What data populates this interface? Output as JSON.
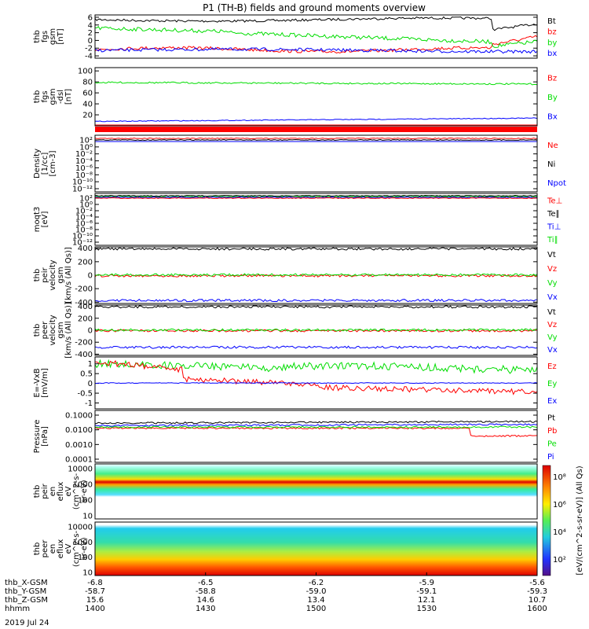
{
  "title": "P1 (TH-B) fields and ground moments overview",
  "date_label": "2019 Jul 24",
  "colors": {
    "black": "#000000",
    "red": "#ff0000",
    "green": "#00dd00",
    "blue": "#0000ff"
  },
  "chart_data": [
    {
      "id": "fgs_small",
      "type": "line",
      "ylabel": [
        "thb",
        "fgs",
        "gsm",
        "[nT]"
      ],
      "yticks": [
        -4,
        -2,
        0,
        2,
        4,
        6
      ],
      "ylim": [
        -4.6,
        6.6
      ],
      "legend": [
        {
          "name": "Bt",
          "color": "black"
        },
        {
          "name": "bz",
          "color": "red"
        },
        {
          "name": "by",
          "color": "green"
        },
        {
          "name": "bx",
          "color": "blue"
        }
      ]
    },
    {
      "id": "fgs_large",
      "type": "line",
      "ylabel": [
        "thb",
        "fgs",
        "gsm",
        "-dsl",
        "[nT]"
      ],
      "yticks": [
        20,
        40,
        60,
        80,
        100
      ],
      "ylim": [
        0,
        106
      ],
      "legend": [
        {
          "name": "Bz",
          "color": "red"
        },
        {
          "name": "By",
          "color": "green"
        },
        {
          "name": "Bx",
          "color": "blue"
        }
      ]
    },
    {
      "id": "density",
      "type": "line",
      "ylabel": [
        "Density",
        "[1/cc]",
        "[cm-3]"
      ],
      "yticks": [
        "10²",
        "10⁰",
        "10⁻²",
        "10⁻⁴",
        "10⁻⁶",
        "10⁻⁸",
        "10⁻¹⁰",
        "10⁻¹²"
      ],
      "legend": [
        {
          "name": "Ne",
          "color": "red"
        },
        {
          "name": "Ni",
          "color": "black"
        },
        {
          "name": "Npot",
          "color": "blue"
        }
      ]
    },
    {
      "id": "temp",
      "type": "line",
      "ylabel": [
        "moqt3",
        "[eV]"
      ],
      "yticks": [
        "10²",
        "10⁰",
        "10⁻²",
        "10⁻⁴",
        "10⁻⁶",
        "10⁻⁸",
        "10⁻¹⁰",
        "10⁻¹²"
      ],
      "legend": [
        {
          "name": "Te⊥",
          "color": "red"
        },
        {
          "name": "Te∥",
          "color": "black"
        },
        {
          "name": "Ti⊥",
          "color": "blue"
        },
        {
          "name": "Ti∥",
          "color": "green"
        }
      ]
    },
    {
      "id": "peir_vel",
      "type": "line",
      "ylabel": [
        "thb",
        "peir",
        "velocity",
        "gsm",
        "[km/s (All Qs)]"
      ],
      "yticks": [
        -400,
        -200,
        0,
        200,
        400
      ],
      "ylim": [
        -420,
        420
      ],
      "legend": [
        {
          "name": "Vt",
          "color": "black"
        },
        {
          "name": "Vz",
          "color": "red"
        },
        {
          "name": "Vy",
          "color": "green"
        },
        {
          "name": "Vx",
          "color": "blue"
        }
      ]
    },
    {
      "id": "peer_vel",
      "type": "line",
      "ylabel": [
        "thb",
        "peer",
        "velocity",
        "gsm",
        "[km/s (All Qs)]"
      ],
      "yticks": [
        -400,
        -200,
        0,
        200,
        400
      ],
      "ylim": [
        -420,
        420
      ],
      "legend": [
        {
          "name": "Vt",
          "color": "black"
        },
        {
          "name": "Vz",
          "color": "red"
        },
        {
          "name": "Vy",
          "color": "green"
        },
        {
          "name": "Vx",
          "color": "blue"
        }
      ]
    },
    {
      "id": "efield",
      "type": "line",
      "ylabel": [
        "E=-VxB",
        "[mV/m]"
      ],
      "yticks": [
        -1.0,
        -0.5,
        0.0,
        0.5,
        1.0
      ],
      "ylim": [
        -1.3,
        1.35
      ],
      "legend": [
        {
          "name": "Ez",
          "color": "red"
        },
        {
          "name": "Ey",
          "color": "green"
        },
        {
          "name": "Ex",
          "color": "blue"
        }
      ]
    },
    {
      "id": "pressure",
      "type": "line",
      "ylabel": [
        "Pressure",
        "[nPa]"
      ],
      "yticks": [
        "0.1000",
        "0.0100",
        "0.0010",
        "0.0001"
      ],
      "legend": [
        {
          "name": "Pt",
          "color": "black"
        },
        {
          "name": "Pb",
          "color": "red"
        },
        {
          "name": "Pe",
          "color": "green"
        },
        {
          "name": "Pi",
          "color": "blue"
        }
      ]
    },
    {
      "id": "peir_spec",
      "type": "heatmap",
      "ylabel": [
        "thb",
        "peir",
        "en",
        "eflux",
        "eV",
        "(cm^2-s-",
        "sr-eV)"
      ],
      "yticks": [
        "10000",
        "1000",
        "100",
        "10"
      ]
    },
    {
      "id": "peer_spec",
      "type": "heatmap",
      "ylabel": [
        "thb",
        "peer",
        "en",
        "eflux",
        "eV",
        "(cm^2-s-",
        "sr-eV)"
      ],
      "yticks": [
        "10000",
        "1000",
        "100",
        "10"
      ]
    }
  ],
  "colorbar": {
    "ticks": [
      "10⁸",
      "10⁶",
      "10⁴",
      "10²"
    ],
    "label": "[eV/(cm^2-s-sr-eV)] (All Qs)"
  },
  "xaxis": {
    "rows": [
      {
        "label": "thb_X-GSM",
        "values": [
          "-6.8",
          "-6.5",
          "-6.2",
          "-5.9",
          "-5.6"
        ]
      },
      {
        "label": "thb_Y-GSM",
        "values": [
          "-58.7",
          "-58.8",
          "-59.0",
          "-59.1",
          "-59.3"
        ]
      },
      {
        "label": "thb_Z-GSM",
        "values": [
          "15.6",
          "14.6",
          "13.4",
          "12.1",
          "10.7"
        ]
      },
      {
        "label": "hhmm",
        "values": [
          "1400",
          "1430",
          "1500",
          "1530",
          "1600"
        ]
      }
    ]
  }
}
